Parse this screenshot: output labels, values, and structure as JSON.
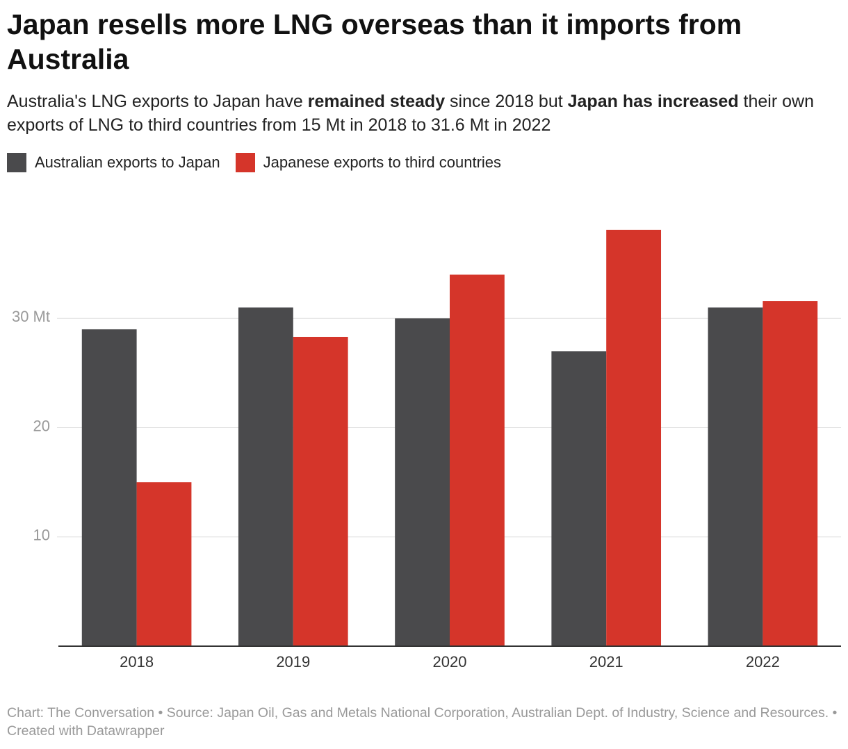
{
  "chart_data": {
    "type": "grouped_bar",
    "title": "Japan resells more LNG overseas than it imports from Australia",
    "subtitle_parts": [
      {
        "text": "Australia's LNG exports to Japan have ",
        "bold": false
      },
      {
        "text": "remained steady",
        "bold": true
      },
      {
        "text": " since 2018 but ",
        "bold": false
      },
      {
        "text": "Japan has increased",
        "bold": true
      },
      {
        "text": " their own exports of LNG to third countries from 15 Mt in 2018 to 31.6 Mt in 2022",
        "bold": false
      }
    ],
    "categories": [
      "2018",
      "2019",
      "2020",
      "2021",
      "2022"
    ],
    "series": [
      {
        "name": "Australian exports to Japan",
        "color": "#4a4a4c",
        "values": [
          29,
          31,
          30,
          27,
          31
        ]
      },
      {
        "name": "Japanese exports to third countries",
        "color": "#d5352a",
        "values": [
          15,
          28.3,
          34,
          38.1,
          31.6
        ]
      }
    ],
    "ylim": [
      0,
      40
    ],
    "yticks": [
      10,
      20,
      {
        "value": 30,
        "label": "30 Mt"
      }
    ],
    "grid": true,
    "notes": "Chart: The Conversation • Source: Japan Oil, Gas and Metals National Corporation, Australian Dept. of Industry, Science and Resources. • Created with Datawrapper"
  }
}
